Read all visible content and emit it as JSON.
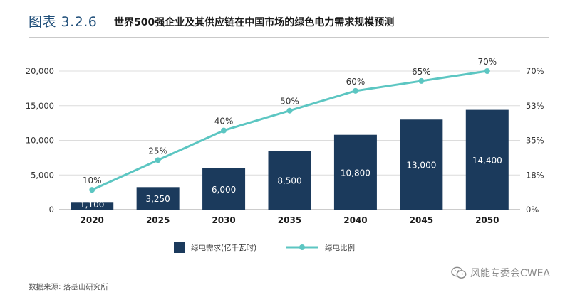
{
  "header": {
    "figure_number": "图表 3.2.6",
    "title": "世界500强企业及其供应链在中国市场的绿色电力需求规模预测"
  },
  "colors": {
    "bar": "#1b3a5c",
    "line": "#5cc6c2",
    "axis_text": "#333333",
    "grid": "#dcdcdc"
  },
  "chart_data": {
    "type": "bar",
    "categories": [
      "2020",
      "2025",
      "2030",
      "2035",
      "2040",
      "2045",
      "2050"
    ],
    "series": [
      {
        "name": "绿电需求(亿千瓦时)",
        "type": "bar",
        "axis": "left",
        "values": [
          1100,
          3250,
          6000,
          8500,
          10800,
          13000,
          14400
        ],
        "labels": [
          "1,100",
          "3,250",
          "6,000",
          "8,500",
          "10,800",
          "13,000",
          "14,400"
        ]
      },
      {
        "name": "绿电比例",
        "type": "line",
        "axis": "right",
        "values": [
          10,
          25,
          40,
          50,
          60,
          65,
          70
        ],
        "labels": [
          "10%",
          "25%",
          "40%",
          "50%",
          "60%",
          "65%",
          "70%"
        ]
      }
    ],
    "y_left": {
      "ylim": [
        0,
        20000
      ],
      "ticks": [
        0,
        5000,
        10000,
        15000,
        20000
      ],
      "tick_labels": [
        "0",
        "5,000",
        "10,000",
        "15,000",
        "20,000"
      ]
    },
    "y_right": {
      "ylim": [
        0,
        70
      ],
      "ticks": [
        0,
        17.5,
        35,
        52.5,
        70
      ],
      "tick_labels": [
        "0%",
        "18%",
        "35%",
        "53%",
        "70%"
      ]
    },
    "grid": true,
    "legend_position": "bottom"
  },
  "footer": {
    "source": "数据来源: 落基山研究所",
    "watermark": "风能专委会CWEA"
  }
}
